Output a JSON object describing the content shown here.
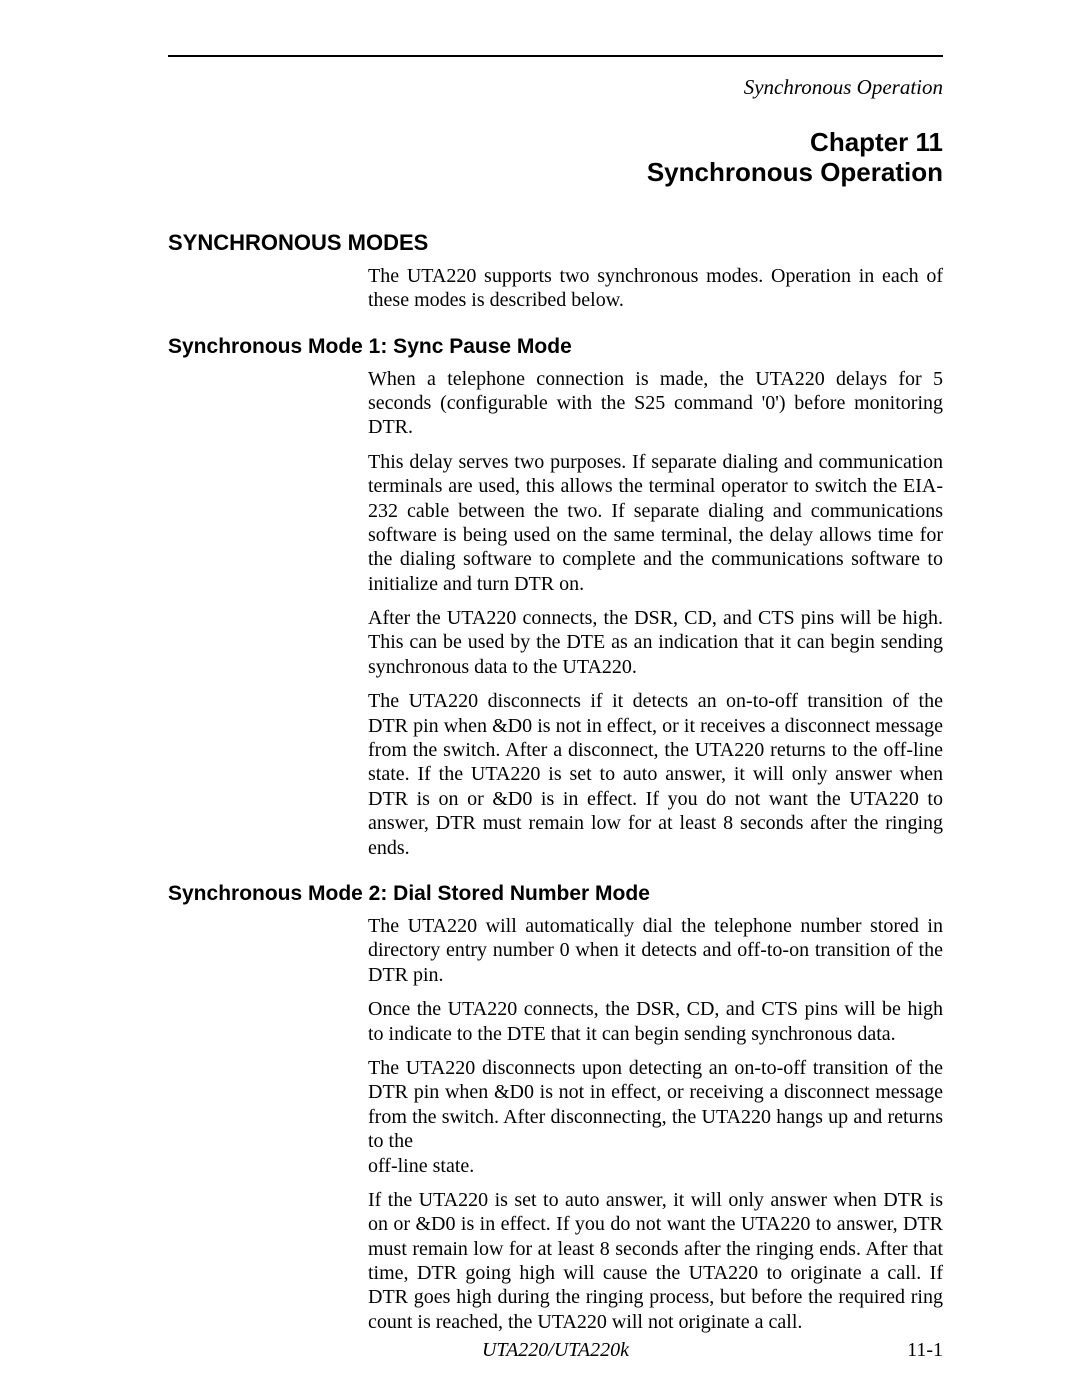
{
  "running_head": "Synchronous Operation",
  "chapter_line1": "Chapter 11",
  "chapter_line2": "Synchronous Operation",
  "h1": "SYNCHRONOUS MODES",
  "intro_p1": "The UTA220 supports two synchronous modes. Operation in each of these modes is described below.",
  "mode1": {
    "heading": "Synchronous Mode 1: Sync Pause Mode",
    "p1": "When a telephone connection is made, the UTA220 delays for 5 seconds (configurable with the S25 command '0') before monitoring DTR.",
    "p2": "This delay serves two purposes. If separate dialing and communication terminals are used, this allows the terminal operator to switch the EIA-232 cable between the two. If separate dialing and communications software is being used on the same terminal, the delay allows time for the dialing software to complete and the communications software to initialize and turn DTR on.",
    "p3": "After the UTA220 connects, the DSR, CD, and CTS pins will be high. This can be used by the DTE as an indication that it can begin sending synchronous data to the UTA220.",
    "p4": "The UTA220 disconnects if it detects an on-to-off transition of the DTR pin when &D0 is not in effect, or it receives a disconnect message from the switch. After a disconnect, the UTA220 returns to the off-line state. If the UTA220 is set to auto answer, it will only answer when DTR is on or &D0 is in effect. If you do not want the UTA220 to answer, DTR must remain low for at least 8 seconds after the ringing ends."
  },
  "mode2": {
    "heading": "Synchronous Mode 2: Dial Stored Number Mode",
    "p1": "The UTA220 will automatically dial the telephone number stored in directory entry number 0 when it detects and off-to-on transition of the DTR pin.",
    "p2": "Once the UTA220 connects, the DSR, CD, and CTS pins will be high to indicate to the DTE that it can begin sending synchronous data.",
    "p3": "The UTA220 disconnects upon detecting an on-to-off transition of the DTR pin when &D0 is not in effect, or receiving a disconnect message from the switch. After disconnecting, the UTA220 hangs up and returns to the",
    "p3b": "off-line state.",
    "p4": "If the UTA220 is set to auto answer, it will only answer when DTR is on or &D0 is in effect. If you do not want the UTA220 to answer, DTR must remain low for at least 8 seconds after the ringing ends. After that time, DTR going high will cause the UTA220 to originate a call. If DTR goes high during the ringing process, but before the required ring count is reached, the UTA220 will not originate a call."
  },
  "footer_center": "UTA220/UTA220k",
  "footer_right": "11-1"
}
